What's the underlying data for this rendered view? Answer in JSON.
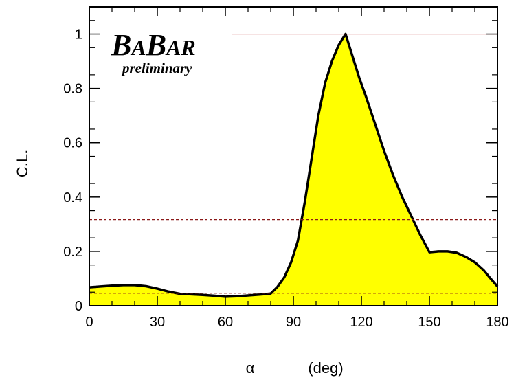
{
  "chart_data": {
    "type": "area",
    "xlabel_symbol": "α",
    "xlabel_unit": "(deg)",
    "ylabel": "C.L.",
    "xlim": [
      0,
      180
    ],
    "ylim": [
      0,
      1.1
    ],
    "xticks": [
      0,
      30,
      60,
      90,
      120,
      150,
      180
    ],
    "yticks": [
      0,
      0.2,
      0.4,
      0.6,
      0.8,
      1
    ],
    "ytick_labels": [
      "0",
      "0.2",
      "0.4",
      "0.6",
      "0.8",
      "1"
    ],
    "logo": {
      "big1": "B",
      "small1": "A",
      "big2": "B",
      "small2": "AR",
      "sub": "preliminary"
    },
    "series": [
      {
        "fill": "#ffff00",
        "line": "#000000",
        "x": [
          0,
          5,
          10,
          15,
          20,
          25,
          30,
          35,
          40,
          45,
          50,
          55,
          60,
          65,
          70,
          75,
          80,
          83,
          86,
          89,
          92,
          95,
          98,
          101,
          104,
          107,
          110,
          113,
          116,
          119,
          122,
          126,
          130,
          134,
          138,
          142,
          146,
          150,
          154,
          158,
          162,
          166,
          170,
          174,
          177,
          180
        ],
        "y": [
          0.068,
          0.071,
          0.074,
          0.076,
          0.076,
          0.072,
          0.063,
          0.052,
          0.044,
          0.042,
          0.04,
          0.037,
          0.033,
          0.035,
          0.038,
          0.041,
          0.045,
          0.07,
          0.105,
          0.16,
          0.24,
          0.38,
          0.54,
          0.7,
          0.82,
          0.9,
          0.96,
          1.0,
          0.92,
          0.84,
          0.77,
          0.67,
          0.57,
          0.48,
          0.4,
          0.33,
          0.26,
          0.197,
          0.2,
          0.2,
          0.195,
          0.18,
          0.16,
          0.13,
          0.1,
          0.071
        ]
      }
    ],
    "reference_lines": [
      {
        "y": 1.0,
        "style": "solid",
        "color": "#b22222",
        "x_from": 63,
        "x_to": 180
      },
      {
        "y": 0.317,
        "style": "dashed",
        "color": "#8b1a1a",
        "x_from": 0,
        "x_to": 180
      },
      {
        "y": 0.046,
        "style": "dashed",
        "color": "#8b1a1a",
        "x_from": 0,
        "x_to": 180
      }
    ]
  }
}
